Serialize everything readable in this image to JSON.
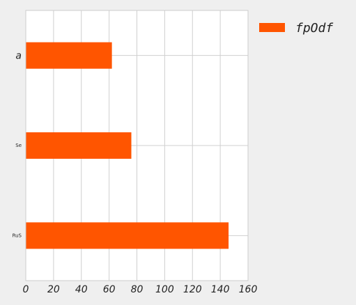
{
  "chart_data": {
    "type": "bar",
    "orientation": "horizontal",
    "categories": [
      "a",
      "Se",
      "RuS"
    ],
    "series": [
      {
        "name": "fpOdf",
        "values": [
          62,
          76,
          146
        ],
        "color": "#ff5500"
      }
    ],
    "title": "",
    "xlabel": "",
    "ylabel": "",
    "xlim": [
      0,
      160
    ],
    "xticks": [
      0,
      20,
      40,
      60,
      80,
      100,
      120,
      140,
      160
    ],
    "grid": true,
    "legend_position": "outside-right-top",
    "background_color": "#efefef",
    "plot_background_color": "#ffffff",
    "grid_color": "#cfcfcf"
  }
}
